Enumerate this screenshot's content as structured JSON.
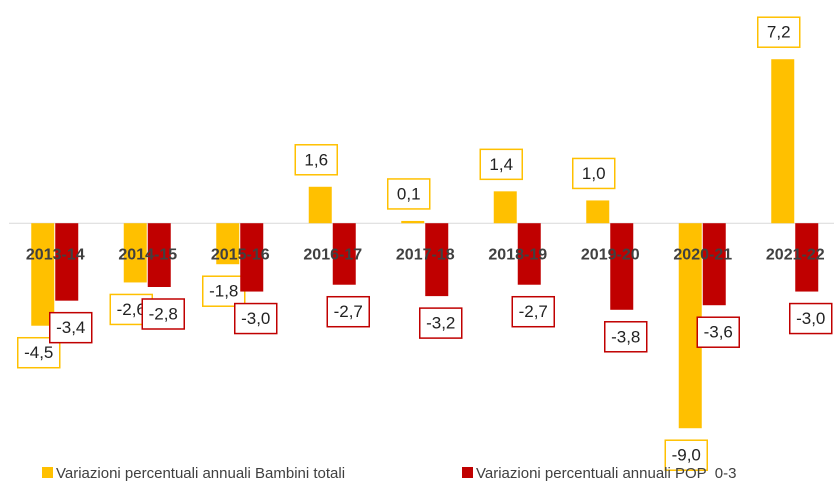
{
  "chart_data": {
    "type": "bar",
    "categories": [
      "2013-14",
      "2014-15",
      "2015-16",
      "2016-17",
      "2017-18",
      "2018-19",
      "2019-20",
      "2020-21",
      "2021-22"
    ],
    "series": [
      {
        "name": "Variazioni percentuali annuali Bambini totali",
        "color": "#ffc000",
        "values": [
          -4.5,
          -2.6,
          -1.8,
          1.6,
          0.1,
          1.4,
          1.0,
          -9.0,
          7.2
        ],
        "value_labels": [
          "-4,5",
          "-2,6",
          "-1,8",
          "1,6",
          "0,1",
          "1,4",
          "1,0",
          "-9,0",
          "7,2"
        ]
      },
      {
        "name": "Variazioni percentuali annuali POP  0-3",
        "color": "#c00000",
        "values": [
          -3.4,
          -2.8,
          -3.0,
          -2.7,
          -3.2,
          -2.7,
          -3.8,
          -3.6,
          -3.0
        ],
        "value_labels": [
          "-3,4",
          "-2,8",
          "-3,0",
          "-2,7",
          "-3,2",
          "-2,7",
          "-3,8",
          "-3,6",
          "-3,0"
        ]
      }
    ],
    "ylim": [
      -10,
      8
    ],
    "legend": "bottom"
  }
}
